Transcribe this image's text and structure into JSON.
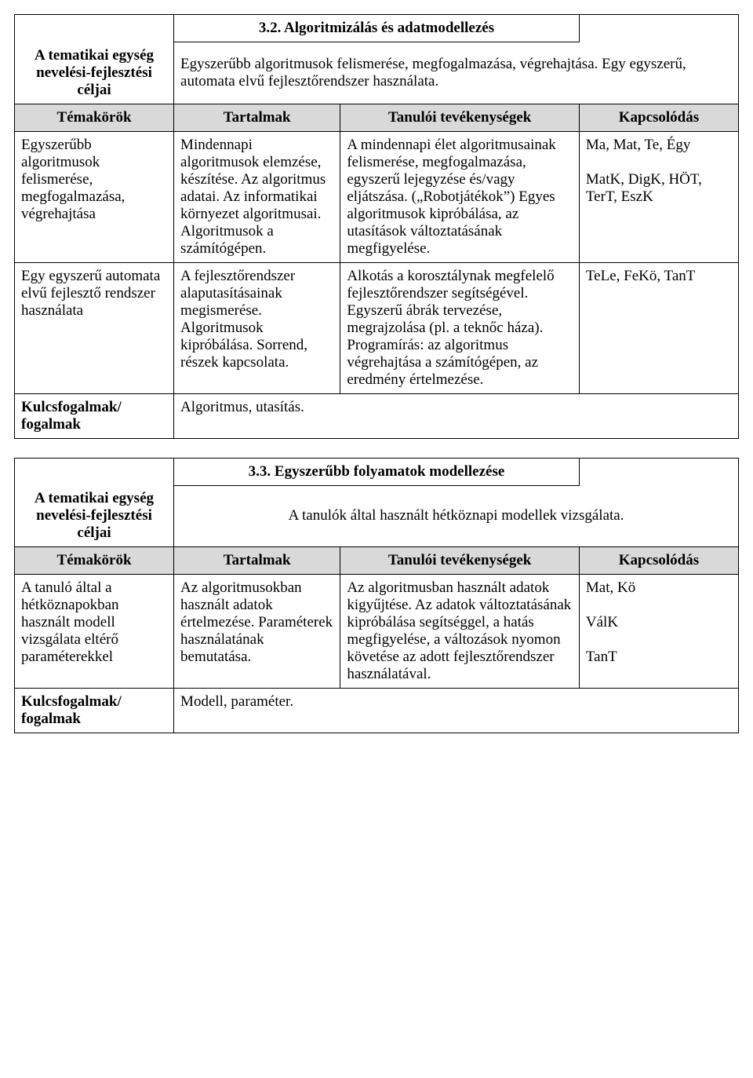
{
  "table1": {
    "title": "3.2. Algoritmizálás és adatmodellezés",
    "goals_label": "A tematikai egység nevelési-fejlesztési céljai",
    "goals_text": "Egyszerűbb algoritmusok felismerése, megfogalmazása, végrehajtása. Egy egyszerű, automata elvű fejlesztőrendszer használata.",
    "headers": {
      "c1": "Témakörök",
      "c2": "Tartalmak",
      "c3": "Tanulói tevékenységek",
      "c4": "Kapcsolódás"
    },
    "rows": [
      {
        "c1": "Egyszerűbb algoritmusok felismerése, megfogalmazása, végrehajtása",
        "c2": "Mindennapi algoritmusok elemzése, készítése. Az algoritmus adatai. Az informatikai környezet algoritmusai. Algoritmusok a számítógépen.",
        "c3": "A mindennapi élet algoritmusainak felismerése, megfogalmazása, egyszerű lejegyzése és/vagy eljátszása. („Robotjátékok”) Egyes algoritmusok kipróbálása, az utasítások változtatásának megfigyelése.",
        "c4": "Ma, Mat, Te, Égy\n\nMatK, DigK, HÖT, TerT, EszK"
      },
      {
        "c1": "Egy egyszerű automata elvű fejlesztő rendszer használata",
        "c2": "A fejlesztőrendszer alaputasításainak megismerése. Algoritmusok kipróbálása. Sorrend, részek kapcsolata.",
        "c3": "Alkotás a korosztálynak megfelelő fejlesztőrendszer segítségével. Egyszerű ábrák tervezése, megrajzolása (pl. a teknőc háza). Programírás: az algoritmus végrehajtása a számítógépen, az eredmény értelmezése.",
        "c4": "TeLe, FeKö, TanT"
      }
    ],
    "keys_label": "Kulcsfogalmak/\nfogalmak",
    "keys_text": "Algoritmus, utasítás."
  },
  "table2": {
    "title": "3.3. Egyszerűbb folyamatok modellezése",
    "goals_label": "A tematikai egység nevelési-fejlesztési céljai",
    "goals_text": "A tanulók által használt hétköznapi modellek vizsgálata.",
    "headers": {
      "c1": "Témakörök",
      "c2": "Tartalmak",
      "c3": "Tanulói tevékenységek",
      "c4": "Kapcsolódás"
    },
    "rows": [
      {
        "c1": "A tanuló által a hétköznapokban használt modell vizsgálata eltérő paraméterekkel",
        "c2": "Az algoritmusokban használt adatok értelmezése. Paraméterek használatának bemutatása.",
        "c3": "Az algoritmusban használt adatok kigyűjtése. Az adatok változtatásának kipróbálása segítséggel, a hatás megfigyelése, a változások nyomon követése az adott fejlesztőrendszer használatával.",
        "c4": "Mat, Kö\n\nVálK\n\nTanT"
      }
    ],
    "keys_label": "Kulcsfogalmak/\nfogalmak",
    "keys_text": "Modell, paraméter."
  },
  "colwidths": {
    "c1": "22%",
    "c2": "23%",
    "c3": "33%",
    "c4": "22%"
  }
}
